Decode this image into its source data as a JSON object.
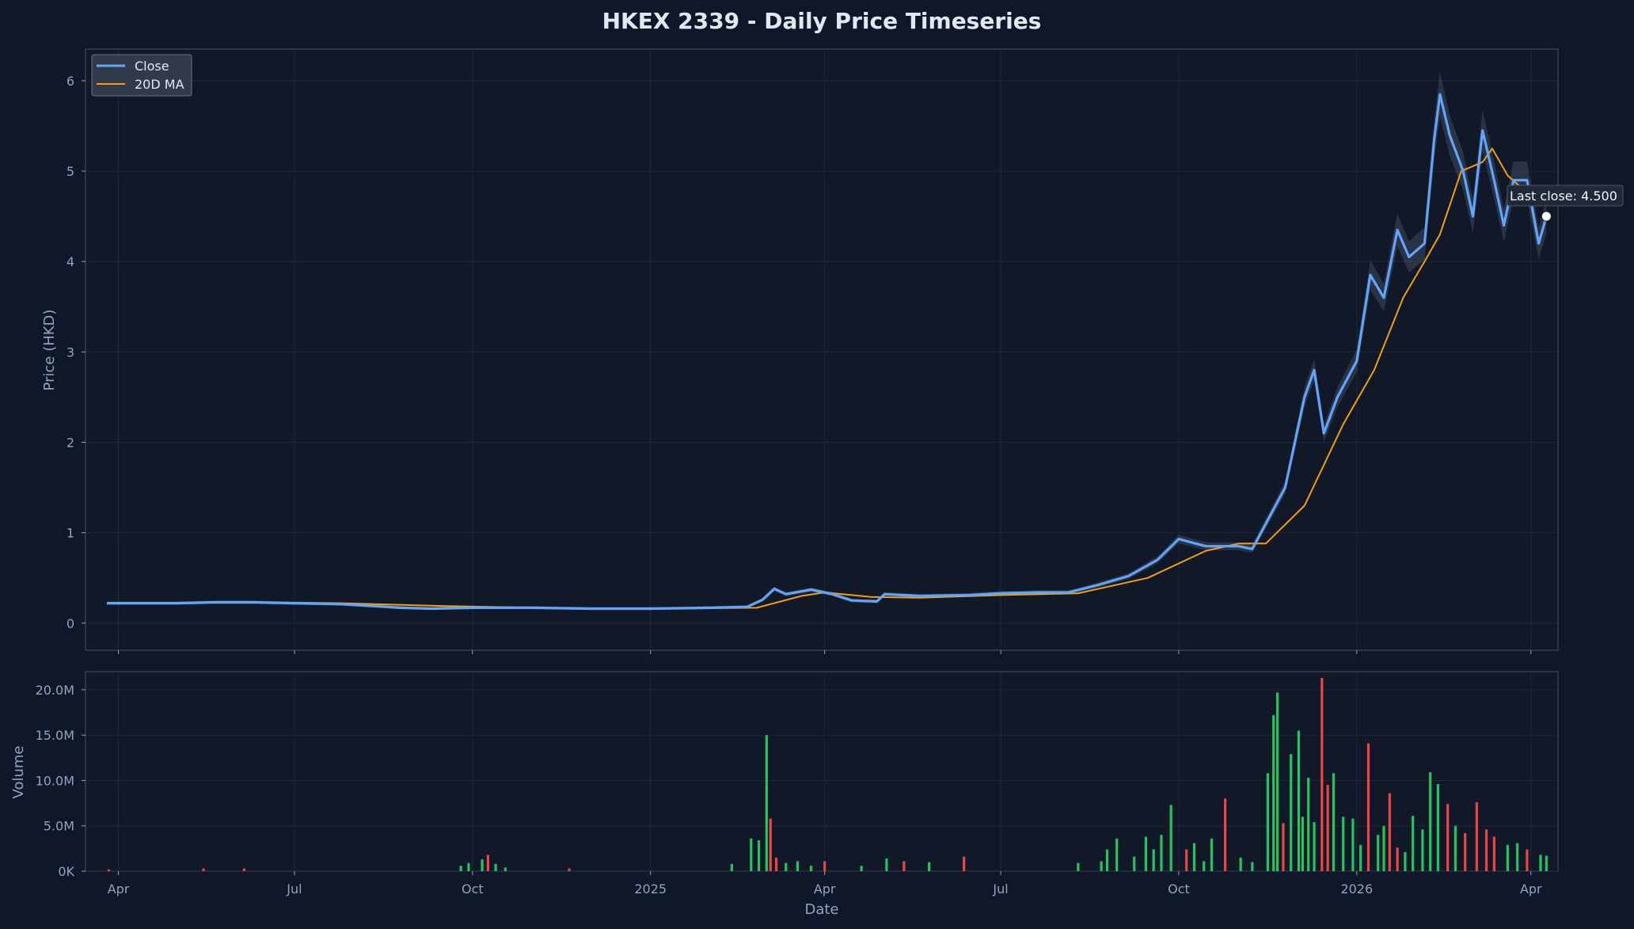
{
  "chart_data": [
    {
      "type": "line",
      "title": "HKEX 2339 - Daily Price Timeseries",
      "ylabel": "Price (HKD)",
      "ylim": [
        -0.3,
        6.35
      ],
      "yticks": [
        0,
        1,
        2,
        3,
        4,
        5,
        6
      ],
      "x_axis": "dates",
      "xlim": [
        "2024-03-15",
        "2026-04-15"
      ],
      "xticks": [
        {
          "date": "2024-04-01",
          "label": "Apr"
        },
        {
          "date": "2024-07-01",
          "label": "Jul"
        },
        {
          "date": "2024-10-01",
          "label": "Oct"
        },
        {
          "date": "2025-01-01",
          "label": "2025"
        },
        {
          "date": "2025-04-01",
          "label": "Apr"
        },
        {
          "date": "2025-07-01",
          "label": "Jul"
        },
        {
          "date": "2025-10-01",
          "label": "Oct"
        },
        {
          "date": "2026-01-01",
          "label": "2026"
        },
        {
          "date": "2026-04-01",
          "label": "Apr"
        }
      ],
      "grid": true,
      "legend_position": "top-left",
      "colors": {
        "close": "#60a5fa",
        "ma": "#f59e0b",
        "band": "#64748b",
        "last": "#ffffff"
      },
      "series": [
        {
          "name": "Close",
          "points": [
            [
              "2024-03-26",
              0.22
            ],
            [
              "2024-04-10",
              0.22
            ],
            [
              "2024-05-01",
              0.22
            ],
            [
              "2024-05-20",
              0.23
            ],
            [
              "2024-06-10",
              0.23
            ],
            [
              "2024-07-01",
              0.22
            ],
            [
              "2024-07-25",
              0.21
            ],
            [
              "2024-08-10",
              0.19
            ],
            [
              "2024-08-25",
              0.17
            ],
            [
              "2024-09-10",
              0.16
            ],
            [
              "2024-10-01",
              0.17
            ],
            [
              "2024-11-01",
              0.17
            ],
            [
              "2024-12-01",
              0.16
            ],
            [
              "2025-01-01",
              0.16
            ],
            [
              "2025-02-01",
              0.17
            ],
            [
              "2025-02-20",
              0.18
            ],
            [
              "2025-02-28",
              0.26
            ],
            [
              "2025-03-06",
              0.38
            ],
            [
              "2025-03-12",
              0.32
            ],
            [
              "2025-03-25",
              0.37
            ],
            [
              "2025-04-05",
              0.32
            ],
            [
              "2025-04-15",
              0.25
            ],
            [
              "2025-04-28",
              0.24
            ],
            [
              "2025-05-02",
              0.32
            ],
            [
              "2025-05-20",
              0.3
            ],
            [
              "2025-06-15",
              0.31
            ],
            [
              "2025-07-01",
              0.33
            ],
            [
              "2025-07-20",
              0.34
            ],
            [
              "2025-08-05",
              0.34
            ],
            [
              "2025-08-20",
              0.42
            ],
            [
              "2025-09-05",
              0.52
            ],
            [
              "2025-09-20",
              0.7
            ],
            [
              "2025-10-01",
              0.93
            ],
            [
              "2025-10-15",
              0.85
            ],
            [
              "2025-11-01",
              0.85
            ],
            [
              "2025-11-08",
              0.82
            ],
            [
              "2025-11-15",
              1.1
            ],
            [
              "2025-11-25",
              1.5
            ],
            [
              "2025-12-05",
              2.5
            ],
            [
              "2025-12-10",
              2.8
            ],
            [
              "2025-12-15",
              2.1
            ],
            [
              "2025-12-22",
              2.5
            ],
            [
              "2026-01-01",
              2.9
            ],
            [
              "2026-01-08",
              3.85
            ],
            [
              "2026-01-15",
              3.6
            ],
            [
              "2026-01-22",
              4.35
            ],
            [
              "2026-01-28",
              4.05
            ],
            [
              "2026-02-05",
              4.2
            ],
            [
              "2026-02-10",
              5.35
            ],
            [
              "2026-02-13",
              5.85
            ],
            [
              "2026-02-18",
              5.4
            ],
            [
              "2026-02-25",
              5.0
            ],
            [
              "2026-03-02",
              4.5
            ],
            [
              "2026-03-07",
              5.45
            ],
            [
              "2026-03-13",
              4.9
            ],
            [
              "2026-03-18",
              4.4
            ],
            [
              "2026-03-23",
              4.9
            ],
            [
              "2026-03-30",
              4.9
            ],
            [
              "2026-04-05",
              4.2
            ],
            [
              "2026-04-09",
              4.5
            ]
          ]
        },
        {
          "name": "20D MA",
          "points": [
            [
              "2024-04-20",
              0.22
            ],
            [
              "2024-06-10",
              0.23
            ],
            [
              "2024-07-25",
              0.22
            ],
            [
              "2024-09-15",
              0.19
            ],
            [
              "2024-11-01",
              0.17
            ],
            [
              "2025-01-01",
              0.16
            ],
            [
              "2025-02-25",
              0.17
            ],
            [
              "2025-03-20",
              0.3
            ],
            [
              "2025-04-01",
              0.34
            ],
            [
              "2025-04-25",
              0.29
            ],
            [
              "2025-05-20",
              0.28
            ],
            [
              "2025-07-01",
              0.31
            ],
            [
              "2025-08-10",
              0.33
            ],
            [
              "2025-09-15",
              0.5
            ],
            [
              "2025-10-15",
              0.8
            ],
            [
              "2025-11-01",
              0.88
            ],
            [
              "2025-11-15",
              0.88
            ],
            [
              "2025-12-05",
              1.3
            ],
            [
              "2025-12-25",
              2.2
            ],
            [
              "2026-01-10",
              2.8
            ],
            [
              "2026-01-25",
              3.6
            ],
            [
              "2026-02-05",
              4.0
            ],
            [
              "2026-02-13",
              4.3
            ],
            [
              "2026-02-24",
              5.0
            ],
            [
              "2026-03-07",
              5.1
            ],
            [
              "2026-03-12",
              5.25
            ],
            [
              "2026-03-20",
              4.95
            ],
            [
              "2026-03-28",
              4.8
            ],
            [
              "2026-04-09",
              4.65
            ]
          ]
        }
      ],
      "annotation": {
        "label": "Last close: 4.500",
        "date": "2026-04-09",
        "value": 4.5
      }
    },
    {
      "type": "bar",
      "ylabel": "Volume",
      "xlabel": "Date",
      "ylim": [
        0,
        22000000
      ],
      "yticks": [
        0,
        5000000,
        10000000,
        15000000,
        20000000
      ],
      "ytick_labels": [
        "0K",
        "5.0M",
        "10.0M",
        "15.0M",
        "20.0M"
      ],
      "grid": true,
      "colors": {
        "up": "#22c55e",
        "down": "#ef4444"
      },
      "bars": [
        [
          "2024-03-27",
          0.2,
          "down"
        ],
        [
          "2024-05-15",
          0.3,
          "down"
        ],
        [
          "2024-06-05",
          0.3,
          "down"
        ],
        [
          "2024-09-25",
          0.6,
          "up"
        ],
        [
          "2024-09-29",
          0.9,
          "up"
        ],
        [
          "2024-10-06",
          1.3,
          "up"
        ],
        [
          "2024-10-09",
          1.8,
          "down"
        ],
        [
          "2024-10-13",
          0.8,
          "up"
        ],
        [
          "2024-10-18",
          0.4,
          "up"
        ],
        [
          "2024-11-20",
          0.3,
          "down"
        ],
        [
          "2025-02-12",
          0.8,
          "up"
        ],
        [
          "2025-02-22",
          3.6,
          "up"
        ],
        [
          "2025-02-26",
          3.4,
          "up"
        ],
        [
          "2025-03-02",
          15.0,
          "up"
        ],
        [
          "2025-03-04",
          5.8,
          "down"
        ],
        [
          "2025-03-07",
          1.5,
          "down"
        ],
        [
          "2025-03-12",
          0.9,
          "up"
        ],
        [
          "2025-03-18",
          1.1,
          "up"
        ],
        [
          "2025-03-25",
          0.6,
          "up"
        ],
        [
          "2025-04-01",
          1.1,
          "down"
        ],
        [
          "2025-04-20",
          0.6,
          "up"
        ],
        [
          "2025-05-03",
          1.4,
          "up"
        ],
        [
          "2025-05-12",
          1.1,
          "down"
        ],
        [
          "2025-05-25",
          1.0,
          "up"
        ],
        [
          "2025-06-12",
          1.6,
          "down"
        ],
        [
          "2025-08-10",
          0.9,
          "up"
        ],
        [
          "2025-08-22",
          1.1,
          "up"
        ],
        [
          "2025-08-25",
          2.4,
          "up"
        ],
        [
          "2025-08-30",
          3.6,
          "up"
        ],
        [
          "2025-09-08",
          1.6,
          "up"
        ],
        [
          "2025-09-14",
          3.8,
          "up"
        ],
        [
          "2025-09-18",
          2.4,
          "up"
        ],
        [
          "2025-09-22",
          4.0,
          "up"
        ],
        [
          "2025-09-27",
          7.3,
          "up"
        ],
        [
          "2025-10-05",
          2.4,
          "down"
        ],
        [
          "2025-10-09",
          3.1,
          "up"
        ],
        [
          "2025-10-14",
          1.1,
          "up"
        ],
        [
          "2025-10-18",
          3.6,
          "up"
        ],
        [
          "2025-10-25",
          8.0,
          "down"
        ],
        [
          "2025-11-02",
          1.5,
          "up"
        ],
        [
          "2025-11-08",
          1.0,
          "up"
        ],
        [
          "2025-11-16",
          10.8,
          "up"
        ],
        [
          "2025-11-19",
          17.2,
          "up"
        ],
        [
          "2025-11-21",
          19.7,
          "up"
        ],
        [
          "2025-11-24",
          5.3,
          "down"
        ],
        [
          "2025-11-28",
          12.9,
          "up"
        ],
        [
          "2025-12-02",
          15.5,
          "up"
        ],
        [
          "2025-12-04",
          6.0,
          "up"
        ],
        [
          "2025-12-07",
          10.3,
          "up"
        ],
        [
          "2025-12-10",
          5.4,
          "up"
        ],
        [
          "2025-12-14",
          21.3,
          "down"
        ],
        [
          "2025-12-17",
          9.5,
          "down"
        ],
        [
          "2025-12-20",
          10.8,
          "up"
        ],
        [
          "2025-12-25",
          6.0,
          "up"
        ],
        [
          "2025-12-30",
          5.8,
          "up"
        ],
        [
          "2026-01-03",
          2.9,
          "up"
        ],
        [
          "2026-01-07",
          14.1,
          "down"
        ],
        [
          "2026-01-12",
          4.0,
          "up"
        ],
        [
          "2026-01-15",
          5.0,
          "up"
        ],
        [
          "2026-01-18",
          8.6,
          "down"
        ],
        [
          "2026-01-22",
          2.6,
          "down"
        ],
        [
          "2026-01-26",
          2.1,
          "up"
        ],
        [
          "2026-01-30",
          6.1,
          "up"
        ],
        [
          "2026-02-04",
          4.6,
          "up"
        ],
        [
          "2026-02-08",
          10.9,
          "up"
        ],
        [
          "2026-02-12",
          9.6,
          "up"
        ],
        [
          "2026-02-17",
          7.4,
          "down"
        ],
        [
          "2026-02-21",
          5.0,
          "up"
        ],
        [
          "2026-02-26",
          4.2,
          "down"
        ],
        [
          "2026-03-04",
          7.6,
          "down"
        ],
        [
          "2026-03-09",
          4.6,
          "down"
        ],
        [
          "2026-03-13",
          3.8,
          "down"
        ],
        [
          "2026-03-20",
          2.9,
          "up"
        ],
        [
          "2026-03-25",
          3.1,
          "up"
        ],
        [
          "2026-03-30",
          2.4,
          "down"
        ],
        [
          "2026-04-06",
          1.8,
          "up"
        ],
        [
          "2026-04-09",
          1.7,
          "up"
        ]
      ]
    }
  ]
}
